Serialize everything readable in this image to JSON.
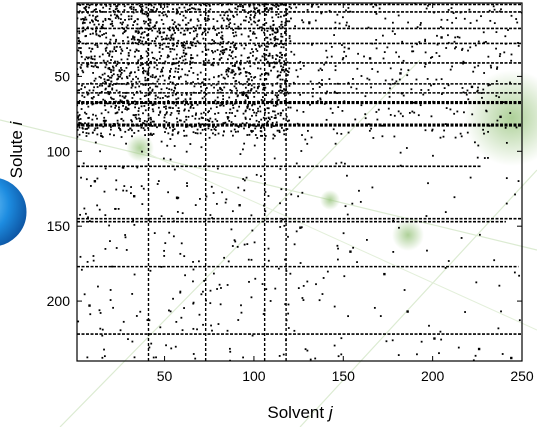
{
  "chart_data": {
    "type": "scatter",
    "chart_style": "binary sparsity matrix of solute-solvent pairs",
    "xlabel": {
      "text": "Solvent ",
      "variable": "j"
    },
    "ylabel": {
      "text": "Solute ",
      "variable": "i"
    },
    "xlim": [
      1,
      250
    ],
    "ylim": [
      240,
      1
    ],
    "x_ticks": [
      50,
      100,
      150,
      200,
      250
    ],
    "y_ticks": [
      50,
      100,
      150,
      200
    ],
    "grid": false,
    "legend": "none",
    "marker_color": "#000000",
    "decoration_color": "#9fc886",
    "dense_rows": [
      2,
      7,
      18,
      28,
      41,
      55,
      61,
      67,
      68,
      82,
      83,
      110,
      145,
      147,
      177,
      222
    ],
    "dense_cols": [
      41,
      73,
      106,
      118
    ],
    "dense_region": {
      "x": [
        1,
        120
      ],
      "y": [
        1,
        90
      ]
    },
    "sample_points": [
      [
        5,
        12
      ],
      [
        34,
        20
      ],
      [
        51,
        25
      ],
      [
        62,
        35
      ],
      [
        88,
        46
      ],
      [
        97,
        52
      ],
      [
        131,
        14
      ],
      [
        165,
        38
      ],
      [
        182,
        48
      ],
      [
        205,
        24
      ],
      [
        222,
        57
      ],
      [
        238,
        77
      ],
      [
        11,
        120
      ],
      [
        33,
        130
      ],
      [
        57,
        131
      ],
      [
        92,
        136
      ],
      [
        126,
        151
      ],
      [
        154,
        167
      ],
      [
        173,
        182
      ],
      [
        186,
        207
      ],
      [
        201,
        225
      ],
      [
        226,
        232
      ],
      [
        244,
        238
      ],
      [
        8,
        203
      ]
    ]
  }
}
